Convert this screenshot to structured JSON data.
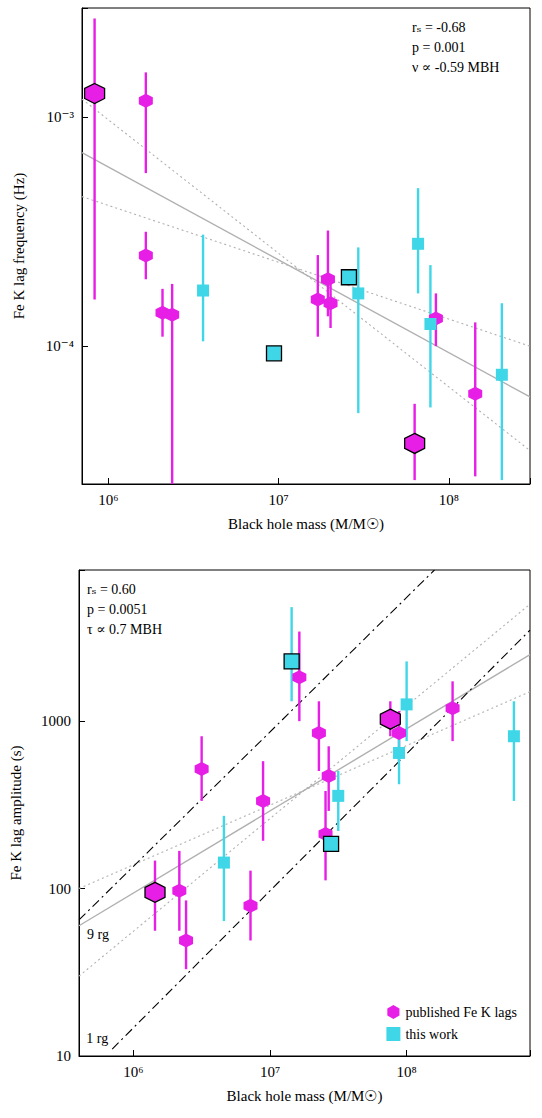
{
  "chart_data": [
    {
      "type": "scatter",
      "log": true,
      "grid": false,
      "xlabel": "Black hole mass (M/M☉)",
      "ylabel": "Fe K lag frequency (Hz)",
      "xlim": [
        700000,
        300000000
      ],
      "ylim": [
        2.5e-05,
        0.003
      ],
      "xticks": [
        {
          "value": 1000000,
          "label": "10⁶"
        },
        {
          "value": 10000000,
          "label": "10⁷"
        },
        {
          "value": 100000000,
          "label": "10⁸"
        }
      ],
      "yticks": [
        {
          "value": 0.0001,
          "label": "10⁻⁴"
        },
        {
          "value": 0.001,
          "label": "10⁻³"
        }
      ],
      "annotations": [
        "rₛ = -0.68",
        "p = 0.001",
        "ν ∝ -0.59 MBH"
      ],
      "series": [
        {
          "name": "published Fe K lags",
          "color": "#e61ee6",
          "marker": "hexagon",
          "x": [
            830000,
            1660000,
            1660000,
            2080000,
            2370000,
            17000000,
            19500000,
            20200000,
            84000000,
            143000000,
            63000000
          ],
          "values": [
            0.00127,
            0.00118,
            0.000249,
            0.00014,
            0.000137,
            0.00016,
            0.000196,
            0.000154,
            0.000132,
            6.2e-05,
            3.76e-05
          ],
          "err_low": [
            0.00016,
            0.00057,
            0.000196,
            0.00011,
            2e-05,
            0.00011,
            0.000135,
            0.00012,
            0.0001,
            2.7e-05,
            2.6e-05
          ],
          "err_high": [
            0.0027,
            0.00157,
            0.000316,
            0.000178,
            0.000187,
            0.00025,
            0.00032,
            0.00019,
            0.00017,
            0.000127,
            5.6e-05
          ],
          "outlined": [
            true,
            false,
            false,
            false,
            false,
            false,
            false,
            false,
            false,
            false,
            true
          ]
        },
        {
          "name": "this work",
          "color": "#3fd6e8",
          "marker": "square",
          "x": [
            3600000,
            9400000,
            25900000,
            29400000,
            66000000,
            78000000,
            205000000
          ],
          "values": [
            0.000175,
            9.3e-05,
            0.0002,
            0.00017,
            0.00028,
            0.000125,
            7.5e-05
          ],
          "err_low": [
            0.000105,
            null,
            null,
            5.1e-05,
            0.00017,
            5.4e-05,
            2.6e-05
          ],
          "err_high": [
            0.000307,
            null,
            null,
            0.00027,
            0.00049,
            0.000226,
            0.000154
          ],
          "outlined": [
            false,
            true,
            true,
            false,
            false,
            false,
            false
          ]
        }
      ],
      "lines": [
        {
          "x": [
            700000,
            300000000
          ],
          "values": [
            0.0007,
            6e-05
          ],
          "color": "#b0b0b0",
          "line_style": "solid"
        },
        {
          "x": [
            700000,
            300000000
          ],
          "values": [
            0.0012,
            3.5e-05
          ],
          "color": "#b0b0b0",
          "line_style": "dotted"
        },
        {
          "x": [
            700000,
            300000000
          ],
          "values": [
            0.00045,
            0.0001
          ],
          "color": "#b0b0b0",
          "line_style": "dotted"
        }
      ]
    },
    {
      "type": "scatter",
      "log": true,
      "grid": false,
      "legend": "lower right",
      "xlabel": "Black hole mass (M/M☉)",
      "ylabel": "Fe K lag amplitude (s)",
      "xlim": [
        400000,
        800000000
      ],
      "ylim": [
        10,
        8000
      ],
      "xticks": [
        {
          "value": 1000000,
          "label": "10⁶"
        },
        {
          "value": 10000000,
          "label": "10⁷"
        },
        {
          "value": 100000000,
          "label": "10⁸"
        }
      ],
      "yticks": [
        10,
        100,
        1000
      ],
      "annotations": [
        "rₛ = 0.60",
        "p = 0.0051",
        "τ ∝ 0.7 MBH"
      ],
      "series": [
        {
          "name": "published Fe K lags",
          "color": "#e61ee6",
          "marker": "hexagon",
          "x": [
            1440000,
            2170000,
            2430000,
            3160000,
            7200000,
            8900000,
            16400000,
            22800000,
            26900000,
            25500000,
            76000000,
            88000000,
            217000000
          ],
          "values": [
            95,
            97,
            49,
            518,
            79,
            334,
            1830,
            849,
            471,
            212,
            1028,
            849,
            1195
          ],
          "err_low": [
            56,
            56,
            33,
            334,
            49,
            193,
            1000,
            504,
            291,
            112,
            813,
            577,
            760
          ],
          "err_high": [
            147,
            168,
            85,
            813,
            128,
            577,
            3430,
            1315,
            708,
            383,
            1315,
            1150,
            1730
          ],
          "outlined": [
            true,
            false,
            false,
            false,
            false,
            false,
            false,
            false,
            false,
            false,
            true,
            false,
            false
          ]
        },
        {
          "name": "this work",
          "color": "#3fd6e8",
          "marker": "square",
          "x": [
            4600000,
            14400000,
            31600000,
            28000000,
            88000000,
            100000000,
            610000000
          ],
          "values": [
            143,
            2275,
            358,
            185,
            646,
            1260,
            813
          ],
          "err_low": [
            64,
            1315,
            221,
            null,
            420,
            760,
            334
          ],
          "err_high": [
            272,
            4800,
            504,
            null,
            900,
            2275,
            1315
          ],
          "outlined": [
            false,
            true,
            false,
            true,
            false,
            false,
            false
          ]
        }
      ],
      "lines": [
        {
          "x": [
            400000,
            800000000
          ],
          "values": [
            60,
            2500
          ],
          "color": "#b0b0b0",
          "line_style": "solid"
        },
        {
          "x": [
            400000,
            800000000
          ],
          "values": [
            30,
            5000
          ],
          "color": "#b0b0b0",
          "line_style": "dotted"
        },
        {
          "x": [
            400000,
            800000000
          ],
          "values": [
            100,
            1500
          ],
          "color": "#b0b0b0",
          "line_style": "dotted"
        },
        {
          "x": [
            400000,
            160000000
          ],
          "values": [
            65,
            8000
          ],
          "color": "#000000",
          "line_style": "dashdot",
          "label": "9 rg"
        },
        {
          "x": [
            700000,
            800000000
          ],
          "values": [
            11,
            3500
          ],
          "color": "#000000",
          "line_style": "dashdot",
          "label": "1 rg"
        }
      ]
    }
  ]
}
